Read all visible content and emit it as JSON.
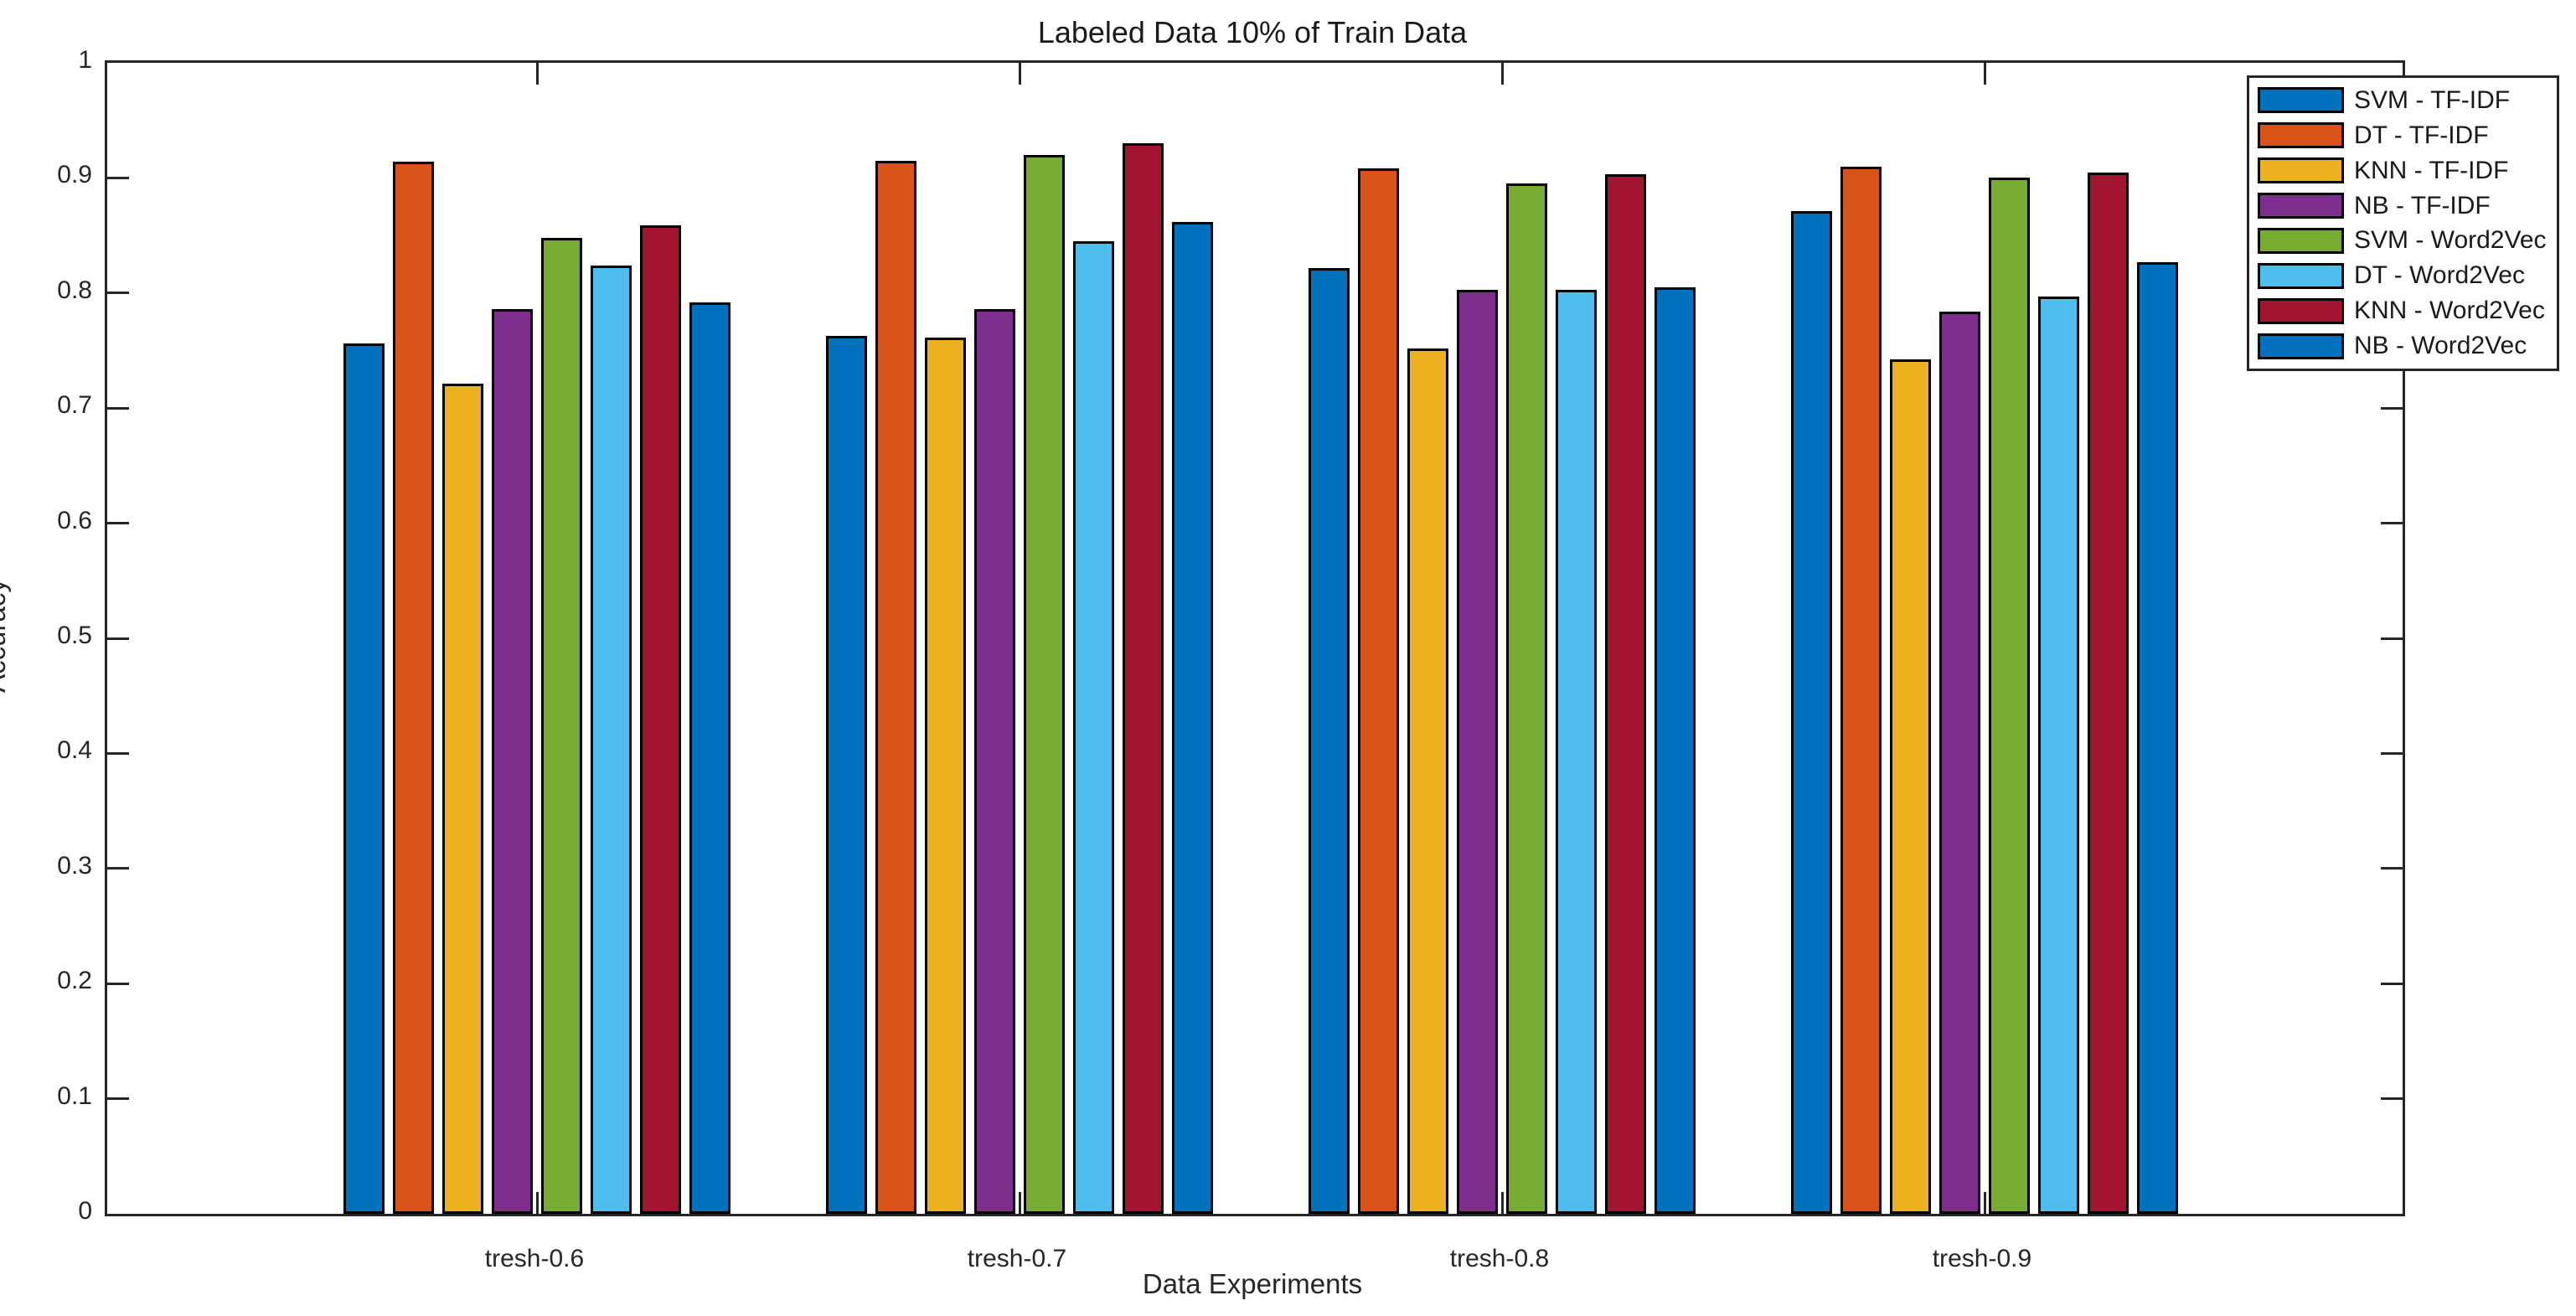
{
  "chart_data": {
    "type": "bar",
    "grouped": true,
    "title": "Labeled Data 10% of Train Data",
    "xlabel": "Data Experiments",
    "ylabel": "Accuracy",
    "categories": [
      "tresh-0.6",
      "tresh-0.7",
      "tresh-0.8",
      "tresh-0.9"
    ],
    "series": [
      {
        "name": "SVM - TF-IDF",
        "color": "#0072BD",
        "values": [
          0.756,
          0.763,
          0.822,
          0.871
        ]
      },
      {
        "name": "DT - TF-IDF",
        "color": "#D95319",
        "values": [
          0.914,
          0.915,
          0.908,
          0.91
        ]
      },
      {
        "name": "KNN - TF-IDF",
        "color": "#EDB120",
        "values": [
          0.721,
          0.761,
          0.752,
          0.742
        ]
      },
      {
        "name": "NB - TF-IDF",
        "color": "#7E2F8E",
        "values": [
          0.786,
          0.786,
          0.803,
          0.784
        ]
      },
      {
        "name": "SVM - Word2Vec",
        "color": "#77AC30",
        "values": [
          0.848,
          0.92,
          0.895,
          0.9
        ]
      },
      {
        "name": "DT - Word2Vec",
        "color": "#4DBEEE",
        "values": [
          0.824,
          0.845,
          0.803,
          0.797
        ]
      },
      {
        "name": "KNN - Word2Vec",
        "color": "#A2142F",
        "values": [
          0.859,
          0.93,
          0.903,
          0.905
        ]
      },
      {
        "name": "NB - Word2Vec",
        "color": "#0072BD",
        "values": [
          0.792,
          0.862,
          0.805,
          0.827
        ]
      }
    ],
    "ylim": [
      0,
      1
    ],
    "yticks": [
      "0",
      "0.1",
      "0.2",
      "0.3",
      "0.4",
      "0.5",
      "0.6",
      "0.7",
      "0.8",
      "0.9",
      "1"
    ],
    "grid": false,
    "legend_position": "northeast",
    "axis_color": "#262626",
    "bar_edge_color": "#000000",
    "background": "#ffffff"
  }
}
